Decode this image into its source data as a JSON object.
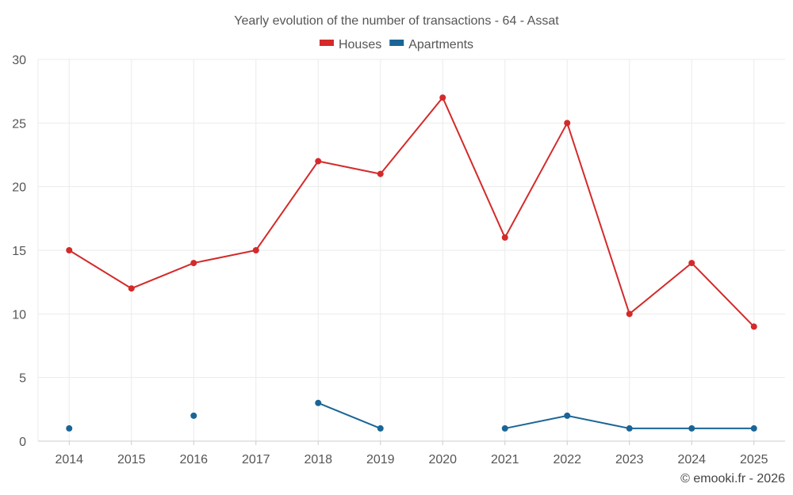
{
  "chart_data": {
    "type": "line",
    "title": "Yearly evolution of the number of transactions - 64 - Assat",
    "xlabel": "",
    "ylabel": "",
    "categories": [
      "2014",
      "2015",
      "2016",
      "2017",
      "2018",
      "2019",
      "2020",
      "2021",
      "2022",
      "2023",
      "2024",
      "2025"
    ],
    "ylim": [
      0,
      30
    ],
    "yticks": [
      "0",
      "5",
      "10",
      "15",
      "20",
      "25",
      "30"
    ],
    "grid": true,
    "legend_position": "top-center",
    "series": [
      {
        "name": "Houses",
        "color": "#d42a2a",
        "values": [
          15,
          12,
          14,
          15,
          22,
          21,
          27,
          16,
          25,
          10,
          14,
          9
        ]
      },
      {
        "name": "Apartments",
        "color": "#1a6597",
        "values": [
          1,
          null,
          2,
          null,
          3,
          1,
          null,
          1,
          2,
          1,
          1,
          1
        ]
      }
    ]
  },
  "credit": "© emooki.fr - 2026"
}
